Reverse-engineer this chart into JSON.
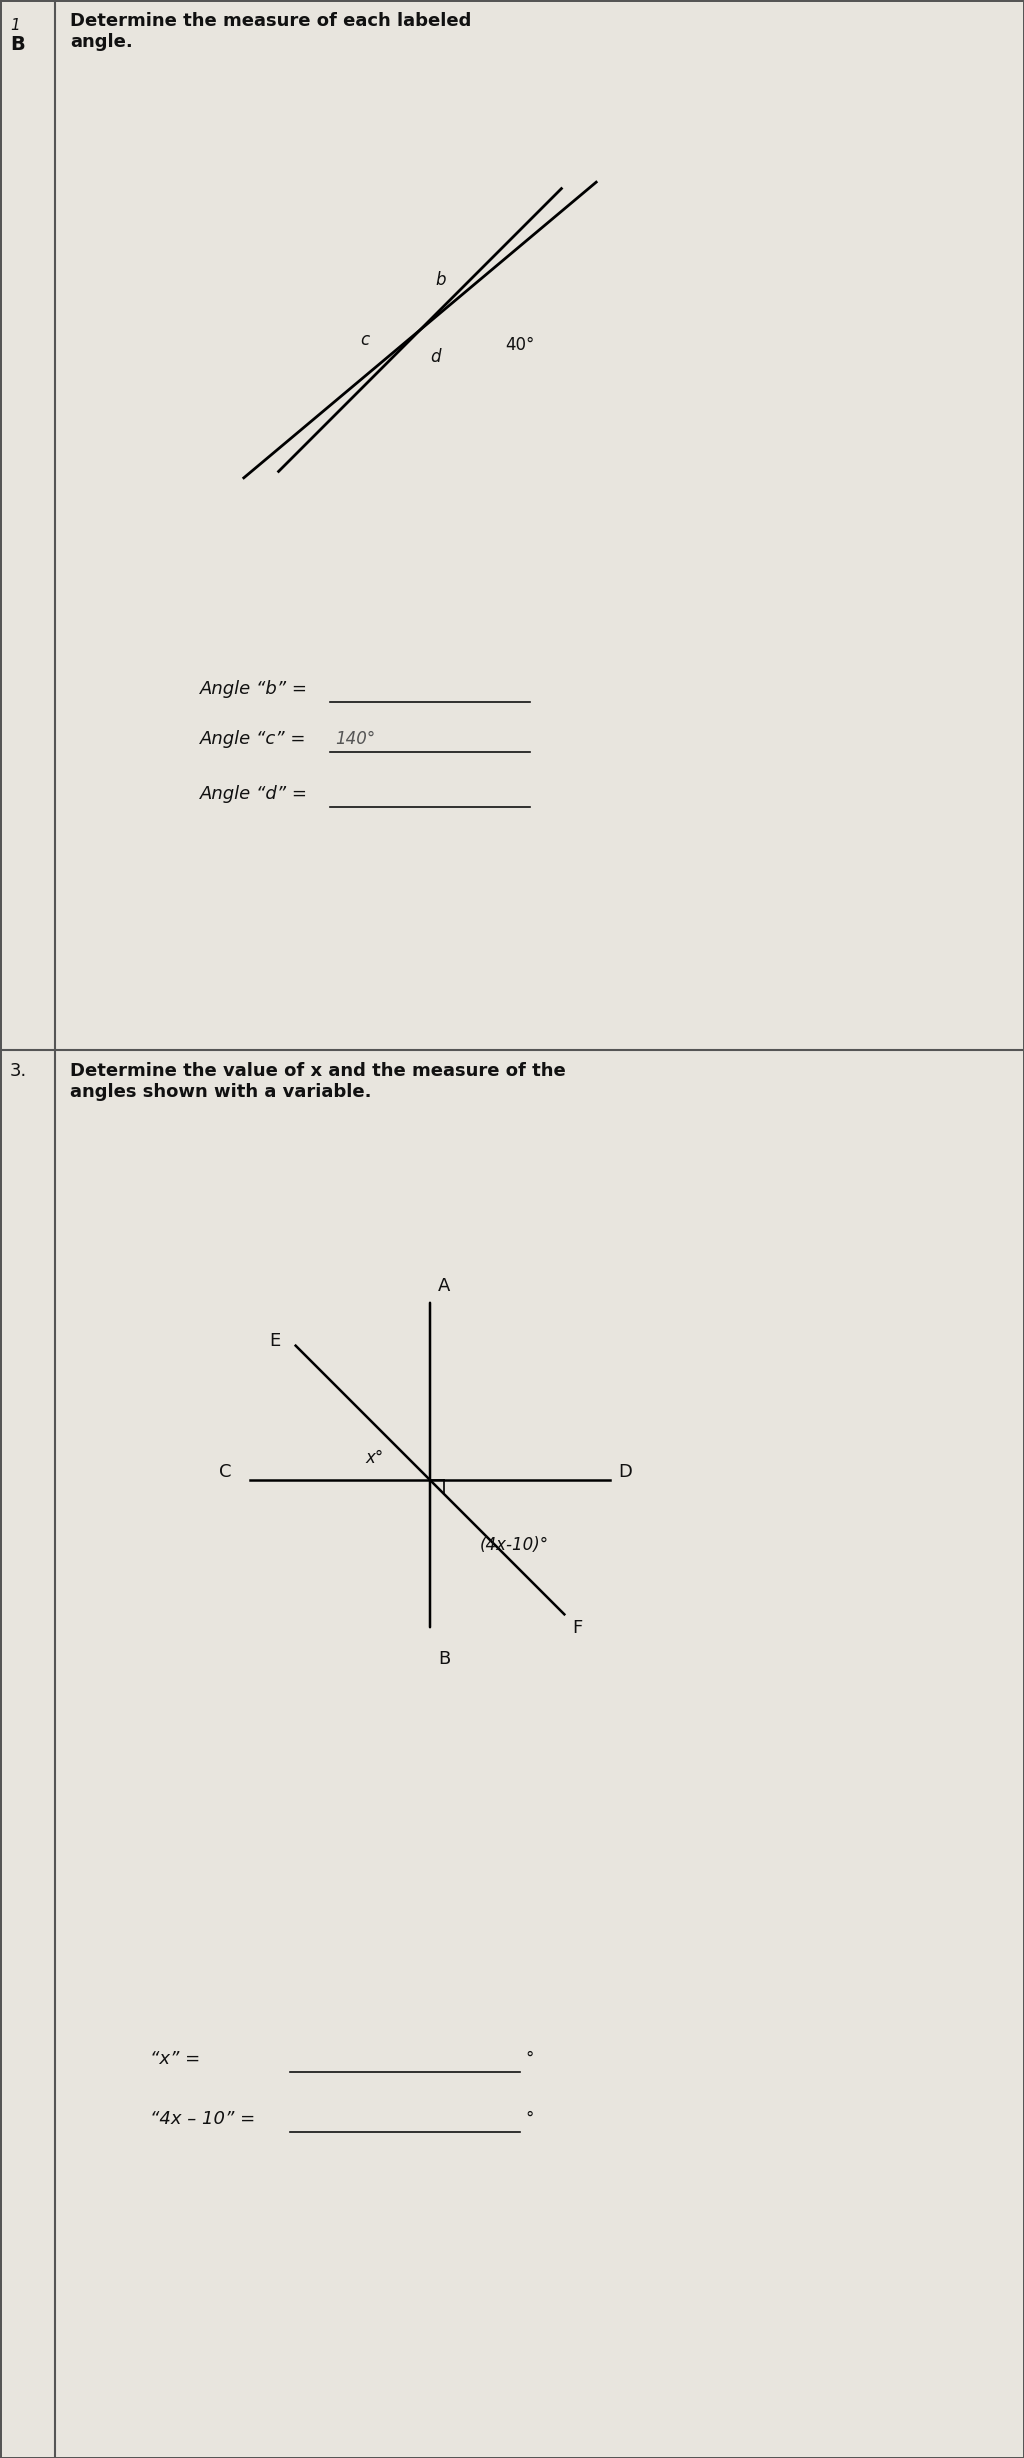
{
  "bg_color": "#d8d5ce",
  "page_bg": "#e8e5de",
  "border_color": "#555555",
  "text_color": "#111111",
  "section_b_label": "B",
  "section_1_label": "1",
  "section_3_label": "3",
  "section_b_instruction": "Determine the measure of each labeled\nangle.",
  "section_3_instruction": "Determine the value of x and the measure of the\nangles shown with a variable.",
  "angle_labels_diagram1": [
    "b",
    "c",
    "d",
    "40°"
  ],
  "angle_b_line": "Angle “b” =",
  "angle_c_line": "Angle “c” =",
  "angle_c_answer": "140°",
  "angle_d_line": "Angle “d” =",
  "x_line": "“x” =",
  "x_degree": "°",
  "expr_line": "“4x – 10” =",
  "expr_degree": "°",
  "diagram2_labels": [
    "A",
    "B",
    "C",
    "D",
    "E",
    "F"
  ],
  "diagram2_angle_x": "x°",
  "diagram2_angle_expr": "(4x-10)°"
}
